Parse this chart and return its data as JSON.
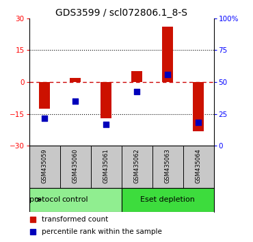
{
  "title": "GDS3599 / scl072806.1_8-S",
  "samples": [
    "GSM435059",
    "GSM435060",
    "GSM435061",
    "GSM435062",
    "GSM435063",
    "GSM435064"
  ],
  "red_bars": [
    -12.5,
    2.0,
    -17.0,
    5.0,
    26.0,
    -23.0
  ],
  "blue_dots": [
    -17.0,
    -9.0,
    -20.0,
    -4.5,
    3.5,
    -19.0
  ],
  "ylim_left": [
    -30,
    30
  ],
  "ylim_right": [
    0,
    100
  ],
  "yticks_left": [
    -30,
    -15,
    0,
    15,
    30
  ],
  "yticks_right": [
    0,
    25,
    50,
    75,
    100
  ],
  "yticklabels_right": [
    "0",
    "25",
    "50",
    "75",
    "100%"
  ],
  "hlines_dotted": [
    -15,
    15
  ],
  "zero_line": 0,
  "protocol_groups": [
    {
      "label": "control",
      "indices": [
        0,
        1,
        2
      ],
      "color": "#90EE90"
    },
    {
      "label": "Eset depletion",
      "indices": [
        3,
        4,
        5
      ],
      "color": "#3DDC3D"
    }
  ],
  "bar_color": "#CC1100",
  "dot_color": "#0000BB",
  "zero_line_color": "#CC0000",
  "grid_color": "#000000",
  "bg_color": "#FFFFFF",
  "sample_bg": "#C8C8C8",
  "bar_width": 0.35,
  "dot_size": 35,
  "title_fontsize": 10,
  "tick_fontsize": 7.5,
  "sample_fontsize": 6,
  "proto_fontsize": 8,
  "legend_fontsize": 7.5
}
